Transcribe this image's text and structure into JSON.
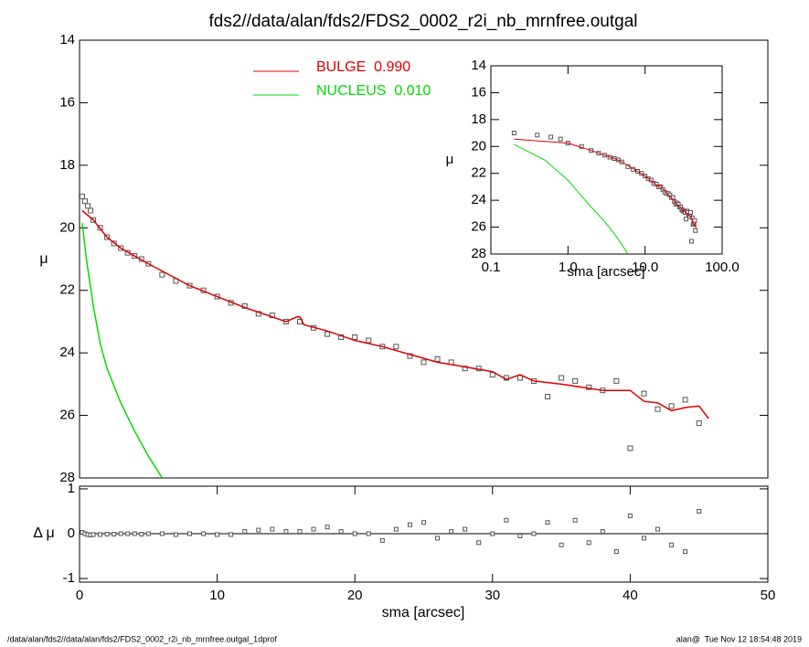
{
  "chart_data": [
    {
      "type": "scatter",
      "title": "fds2//data/alan/fds2/FDS2_0002_r2i_nb_mrnfree.outgal",
      "ylabel": "μ",
      "color": "#555555",
      "x": [
        0.2,
        0.4,
        0.6,
        0.8,
        1,
        1.5,
        2,
        2.5,
        3,
        3.5,
        4,
        4.5,
        5,
        6,
        7,
        8,
        9,
        10,
        11,
        12,
        13,
        14,
        15,
        16,
        17,
        18,
        19,
        20,
        21,
        22,
        23,
        24,
        25,
        26,
        27,
        28,
        29,
        30,
        31,
        32,
        33,
        34,
        35,
        36,
        37,
        38,
        39,
        40,
        41,
        42,
        43,
        44,
        45
      ],
      "values": [
        19.0,
        19.15,
        19.3,
        19.45,
        19.75,
        20.0,
        20.3,
        20.5,
        20.65,
        20.8,
        20.9,
        21.0,
        21.15,
        21.5,
        21.7,
        21.85,
        22.0,
        22.2,
        22.4,
        22.5,
        22.75,
        22.8,
        23.0,
        23.0,
        23.2,
        23.4,
        23.5,
        23.5,
        23.6,
        23.8,
        23.8,
        24.1,
        24.3,
        24.2,
        24.3,
        24.5,
        24.5,
        24.7,
        24.8,
        24.8,
        24.9,
        25.4,
        24.8,
        24.9,
        25.1,
        25.2,
        24.9,
        27.05,
        25.3,
        25.8,
        25.7,
        25.5,
        26.25
      ],
      "series": [
        {
          "name": "BULGE  0.990",
          "color": "#e00000",
          "x": [
            0.2,
            1,
            2,
            3,
            4,
            5,
            8,
            10,
            12,
            15,
            15.8,
            16,
            16.3,
            18,
            20,
            22,
            24,
            26,
            28,
            30,
            31,
            32,
            33,
            35,
            38,
            40,
            41,
            42,
            43,
            44,
            45,
            45.7
          ],
          "values": [
            19.45,
            19.75,
            20.3,
            20.65,
            20.9,
            21.15,
            21.85,
            22.2,
            22.55,
            23.0,
            22.85,
            22.85,
            23.1,
            23.3,
            23.6,
            23.8,
            24.05,
            24.3,
            24.45,
            24.6,
            24.85,
            24.7,
            24.9,
            25.0,
            25.2,
            25.2,
            25.55,
            25.6,
            25.85,
            25.75,
            25.7,
            26.1
          ]
        },
        {
          "name": "NUCLEUS  0.010",
          "color": "#00dd00",
          "x": [
            0.2,
            0.5,
            1,
            1.5,
            2,
            3,
            4,
            5,
            6
          ],
          "values": [
            19.85,
            21.0,
            22.5,
            23.7,
            24.5,
            25.6,
            26.5,
            27.3,
            28.0
          ]
        }
      ],
      "xlim": [
        0,
        50
      ],
      "ylim": [
        28,
        14
      ],
      "yticks": [
        14,
        16,
        18,
        20,
        22,
        24,
        26,
        28
      ]
    },
    {
      "type": "scatter",
      "ylabel": "Δ μ",
      "xlabel": "sma [arcsec]",
      "color": "#555555",
      "x": [
        0.2,
        0.4,
        0.6,
        0.8,
        1,
        1.5,
        2,
        2.5,
        3,
        3.5,
        4,
        4.5,
        5,
        6,
        7,
        8,
        9,
        10,
        11,
        12,
        13,
        14,
        15,
        16,
        17,
        18,
        19,
        20,
        21,
        22,
        23,
        24,
        25,
        26,
        27,
        28,
        29,
        30,
        31,
        32,
        33,
        34,
        35,
        36,
        37,
        38,
        39,
        40,
        41,
        42,
        43,
        44,
        45
      ],
      "values": [
        0.03,
        0.0,
        -0.02,
        -0.03,
        -0.02,
        -0.02,
        -0.01,
        -0.01,
        0,
        0,
        0,
        -0.01,
        0,
        0,
        -0.02,
        0,
        0,
        -0.02,
        -0.02,
        0.05,
        0.08,
        0.1,
        0.05,
        0.05,
        0.1,
        0.15,
        0.05,
        0,
        0,
        -0.15,
        0.1,
        0.2,
        0.25,
        -0.1,
        0.05,
        0.1,
        -0.2,
        0,
        0.3,
        -0.05,
        0,
        0.25,
        -0.25,
        0.3,
        -0.2,
        0.05,
        -0.4,
        0.4,
        -0.1,
        0.1,
        -0.25,
        -0.4,
        0.5
      ],
      "xlim": [
        0,
        50
      ],
      "xticks": [
        0,
        10,
        20,
        30,
        40,
        50
      ],
      "ylim": [
        -1.08,
        1.06
      ],
      "yticks": [
        -1,
        0,
        1
      ]
    },
    {
      "type": "inset",
      "xlabel": "sma [arcsec]",
      "ylabel": "μ",
      "xlog": true,
      "xlim": [
        0.1,
        100
      ],
      "xticks": [
        0.1,
        {
          "value": 1,
          "label": "1.0"
        },
        {
          "value": 10,
          "label": "10.0"
        },
        {
          "value": 100,
          "label": "100.0"
        }
      ],
      "ylim": [
        28,
        14
      ],
      "yticks": [
        14,
        16,
        18,
        20,
        22,
        24,
        26,
        28
      ]
    }
  ],
  "footer": {
    "left": "/data/alan/fds2//data/alan/fds2/FDS2_0002_r2i_nb_mrnfree.outgal_1dprof",
    "right": "alan@  Tue Nov 12 18:54:48 2019"
  }
}
